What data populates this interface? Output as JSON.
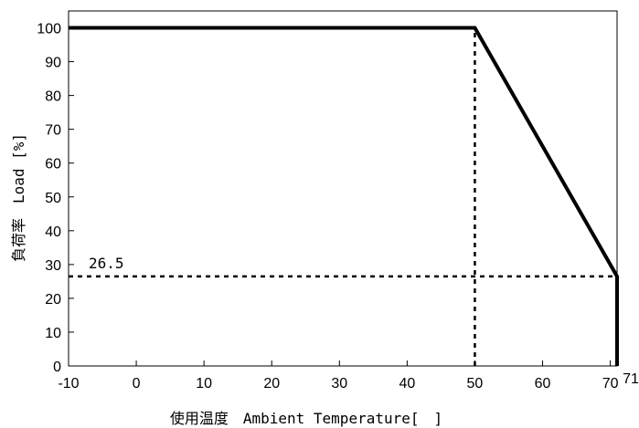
{
  "chart_data": {
    "type": "line",
    "xlabel": "使用温度　Ambient Temperature[　]",
    "ylabel": "負荷率　Load [%]",
    "xlim": [
      -10,
      71
    ],
    "ylim": [
      0,
      105
    ],
    "xticks": [
      "-10",
      "0",
      "10",
      "20",
      "30",
      "40",
      "50",
      "60",
      "70"
    ],
    "xtick_values": [
      -10,
      0,
      10,
      20,
      30,
      40,
      50,
      60,
      70
    ],
    "yticks": [
      "0",
      "10",
      "20",
      "30",
      "40",
      "50",
      "60",
      "70",
      "80",
      "90",
      "100"
    ],
    "ytick_values": [
      0,
      10,
      20,
      30,
      40,
      50,
      60,
      70,
      80,
      90,
      100
    ],
    "extra_xtick": {
      "label": "71",
      "value": 71
    },
    "series": [
      {
        "x": [
          -10,
          50,
          71,
          71
        ],
        "y": [
          100,
          100,
          26.5,
          0
        ]
      }
    ],
    "reference_lines": [
      {
        "type": "vertical",
        "x": 50,
        "y_from": 0,
        "y_to": 100
      },
      {
        "type": "horizontal",
        "y": 26.5,
        "x_from": -10,
        "x_to": 71
      }
    ],
    "annotations": [
      {
        "text": "26.5",
        "x": -10,
        "y": 26.5
      }
    ],
    "grid": false,
    "colors": {
      "line": "#000000",
      "axis": "#000000"
    }
  }
}
